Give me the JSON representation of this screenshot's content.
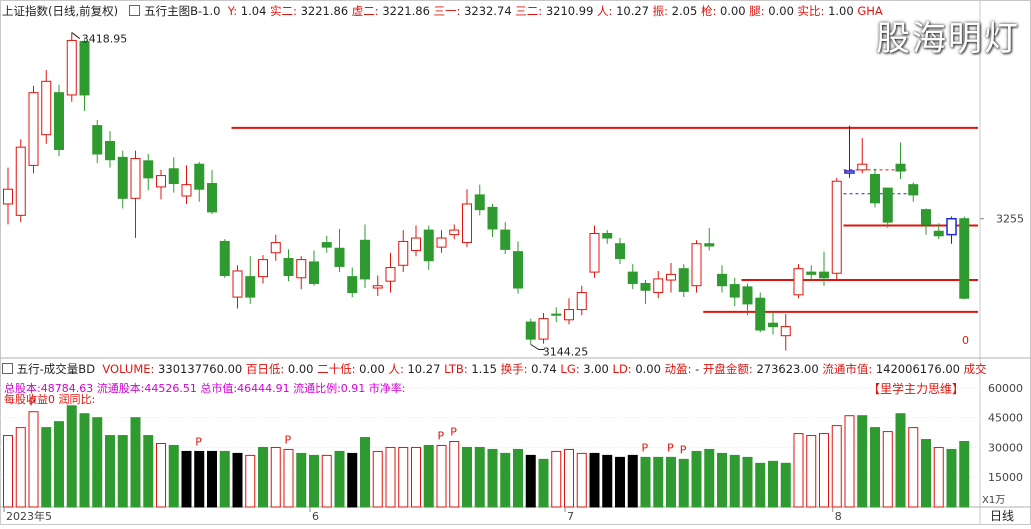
{
  "main_header": {
    "title": "上证指数(日线,前复权)",
    "indicator": "五行主图B-1.0",
    "items": [
      {
        "label": "Y:",
        "value": "1.04"
      },
      {
        "label": "实二:",
        "value": "3221.86"
      },
      {
        "label": "虚二:",
        "value": "3221.86"
      },
      {
        "label": "三一:",
        "value": "3232.74"
      },
      {
        "label": "三二:",
        "value": "3210.99"
      },
      {
        "label": "人:",
        "value": "10.27"
      },
      {
        "label": "振:",
        "value": "2.05"
      },
      {
        "label": "枪:",
        "value": "0.00"
      },
      {
        "label": "腿:",
        "value": "0.00"
      },
      {
        "label": "实比:",
        "value": "1.00"
      },
      {
        "label": "GHA",
        "value": ""
      }
    ]
  },
  "watermark": "股海明灯",
  "annotations": {
    "high": "3418.95",
    "low": "3144.25",
    "price_tick": "3255",
    "zero": "0"
  },
  "volume_header": {
    "indicator": "五行-成交量BD",
    "items": [
      {
        "label": "VOLUME:",
        "value": "330137760.00"
      },
      {
        "label": "百日低:",
        "value": "0.00"
      },
      {
        "label": "二十低:",
        "value": "0.00"
      },
      {
        "label": "人:",
        "value": "10.27"
      },
      {
        "label": "LTB:",
        "value": "1.15"
      },
      {
        "label": "换手:",
        "value": "0.74"
      },
      {
        "label": "LG:",
        "value": "3.00"
      },
      {
        "label": "LD:",
        "value": "0.00"
      },
      {
        "label": "动盈:",
        "value": "-"
      },
      {
        "label": "开盘金额:",
        "value": "273623.00"
      },
      {
        "label": "流通市值:",
        "value": "142006176.00"
      },
      {
        "label": "成交",
        "value": ""
      }
    ]
  },
  "volume_info": {
    "line1": "总股本:48784.63 流通股本:44526.51 总市值:46444.91 流通比例:0.91   市净率:",
    "line2": "每股收益0   润同比:",
    "brand": "【里学主力思维】"
  },
  "volume_axis": {
    "ticks": [
      "60000",
      "45000",
      "30000",
      "15000"
    ],
    "unit": "X1万"
  },
  "time_axis": {
    "labels": [
      "2023年5",
      "6",
      "7",
      "8"
    ],
    "period": "日线"
  },
  "colors": {
    "up": "#e0140e",
    "down": "#2f9a2f",
    "flat": "#1a2ad0",
    "low_vol": "#000000",
    "line": "#e0140e",
    "bg": "#ffffff"
  },
  "chart_data": [
    {
      "type": "candlestick",
      "title": "上证指数(日线,前复权)",
      "markers": {
        "high": 3418.95,
        "low": 3144.25
      },
      "y_tick": 3255,
      "candles": [
        {
          "o": 3268,
          "c": 3281,
          "h": 3300,
          "l": 3250,
          "d": "up"
        },
        {
          "o": 3258,
          "c": 3318,
          "h": 3325,
          "l": 3252,
          "d": "up"
        },
        {
          "o": 3302,
          "c": 3366,
          "h": 3372,
          "l": 3295,
          "d": "up"
        },
        {
          "o": 3329,
          "c": 3376,
          "h": 3386,
          "l": 3321,
          "d": "up"
        },
        {
          "o": 3366,
          "c": 3316,
          "h": 3373,
          "l": 3310,
          "d": "down"
        },
        {
          "o": 3364,
          "c": 3412,
          "h": 3418.95,
          "l": 3358,
          "d": "up"
        },
        {
          "o": 3411,
          "c": 3364,
          "h": 3413,
          "l": 3350,
          "d": "down"
        },
        {
          "o": 3337,
          "c": 3312,
          "h": 3342,
          "l": 3304,
          "d": "down"
        },
        {
          "o": 3323,
          "c": 3307,
          "h": 3332,
          "l": 3300,
          "d": "down"
        },
        {
          "o": 3309,
          "c": 3273,
          "h": 3315,
          "l": 3264,
          "d": "down"
        },
        {
          "o": 3273,
          "c": 3308,
          "h": 3315,
          "l": 3238,
          "d": "up"
        },
        {
          "o": 3306,
          "c": 3291,
          "h": 3312,
          "l": 3280,
          "d": "down"
        },
        {
          "o": 3283,
          "c": 3293,
          "h": 3298,
          "l": 3272,
          "d": "up"
        },
        {
          "o": 3299,
          "c": 3286,
          "h": 3309,
          "l": 3278,
          "d": "down"
        },
        {
          "o": 3275,
          "c": 3285,
          "h": 3302,
          "l": 3268,
          "d": "up"
        },
        {
          "o": 3303,
          "c": 3281,
          "h": 3305,
          "l": 3270,
          "d": "down"
        },
        {
          "o": 3286,
          "c": 3261,
          "h": 3298,
          "l": 3259,
          "d": "down"
        },
        {
          "o": 3235,
          "c": 3205,
          "h": 3237,
          "l": 3203,
          "d": "down"
        },
        {
          "o": 3186,
          "c": 3209,
          "h": 3214,
          "l": 3176,
          "d": "up"
        },
        {
          "o": 3204,
          "c": 3186,
          "h": 3222,
          "l": 3180,
          "d": "down"
        },
        {
          "o": 3204,
          "c": 3219,
          "h": 3223,
          "l": 3198,
          "d": "up"
        },
        {
          "o": 3225,
          "c": 3234,
          "h": 3241,
          "l": 3218,
          "d": "up"
        },
        {
          "o": 3220,
          "c": 3205,
          "h": 3228,
          "l": 3200,
          "d": "down"
        },
        {
          "o": 3203,
          "c": 3219,
          "h": 3222,
          "l": 3193,
          "d": "up"
        },
        {
          "o": 3217,
          "c": 3198,
          "h": 3227,
          "l": 3196,
          "d": "down"
        },
        {
          "o": 3234,
          "c": 3230,
          "h": 3240,
          "l": 3225,
          "d": "down"
        },
        {
          "o": 3229,
          "c": 3213,
          "h": 3246,
          "l": 3208,
          "d": "down"
        },
        {
          "o": 3204,
          "c": 3190,
          "h": 3212,
          "l": 3186,
          "d": "down"
        },
        {
          "o": 3236,
          "c": 3202,
          "h": 3250,
          "l": 3194,
          "d": "down"
        },
        {
          "o": 3194,
          "c": 3196,
          "h": 3205,
          "l": 3187,
          "d": "up"
        },
        {
          "o": 3200,
          "c": 3212,
          "h": 3225,
          "l": 3190,
          "d": "up"
        },
        {
          "o": 3214,
          "c": 3235,
          "h": 3245,
          "l": 3208,
          "d": "up"
        },
        {
          "o": 3227,
          "c": 3238,
          "h": 3249,
          "l": 3222,
          "d": "up"
        },
        {
          "o": 3245,
          "c": 3218,
          "h": 3249,
          "l": 3210,
          "d": "down"
        },
        {
          "o": 3230,
          "c": 3238,
          "h": 3245,
          "l": 3225,
          "d": "up"
        },
        {
          "o": 3241,
          "c": 3245,
          "h": 3250,
          "l": 3237,
          "d": "up"
        },
        {
          "o": 3234,
          "c": 3268,
          "h": 3281,
          "l": 3230,
          "d": "up"
        },
        {
          "o": 3276,
          "c": 3263,
          "h": 3285,
          "l": 3258,
          "d": "down"
        },
        {
          "o": 3265,
          "c": 3246,
          "h": 3268,
          "l": 3239,
          "d": "down"
        },
        {
          "o": 3245,
          "c": 3228,
          "h": 3252,
          "l": 3224,
          "d": "down"
        },
        {
          "o": 3226,
          "c": 3194,
          "h": 3235,
          "l": 3189,
          "d": "down"
        },
        {
          "o": 3164,
          "c": 3149,
          "h": 3167,
          "l": 3144.25,
          "d": "down"
        },
        {
          "o": 3149,
          "c": 3167,
          "h": 3172,
          "l": 3145,
          "d": "up"
        },
        {
          "o": 3171,
          "c": 3170,
          "h": 3177,
          "l": 3164,
          "d": "down"
        },
        {
          "o": 3166,
          "c": 3175,
          "h": 3185,
          "l": 3162,
          "d": "up"
        },
        {
          "o": 3175,
          "c": 3190,
          "h": 3196,
          "l": 3170,
          "d": "up"
        },
        {
          "o": 3208,
          "c": 3242,
          "h": 3249,
          "l": 3203,
          "d": "up"
        },
        {
          "o": 3242,
          "c": 3238,
          "h": 3245,
          "l": 3233,
          "d": "down"
        },
        {
          "o": 3233,
          "c": 3220,
          "h": 3238,
          "l": 3215,
          "d": "down"
        },
        {
          "o": 3208,
          "c": 3198,
          "h": 3215,
          "l": 3193,
          "d": "down"
        },
        {
          "o": 3198,
          "c": 3192,
          "h": 3201,
          "l": 3180,
          "d": "down"
        },
        {
          "o": 3190,
          "c": 3202,
          "h": 3209,
          "l": 3185,
          "d": "up"
        },
        {
          "o": 3201,
          "c": 3206,
          "h": 3216,
          "l": 3190,
          "d": "up"
        },
        {
          "o": 3211,
          "c": 3191,
          "h": 3215,
          "l": 3186,
          "d": "down"
        },
        {
          "o": 3196,
          "c": 3233,
          "h": 3236,
          "l": 3190,
          "d": "up"
        },
        {
          "o": 3233,
          "c": 3231,
          "h": 3247,
          "l": 3227,
          "d": "down"
        },
        {
          "o": 3206,
          "c": 3196,
          "h": 3214,
          "l": 3190,
          "d": "down"
        },
        {
          "o": 3197,
          "c": 3186,
          "h": 3203,
          "l": 3178,
          "d": "down"
        },
        {
          "o": 3195,
          "c": 3180,
          "h": 3198,
          "l": 3170,
          "d": "down"
        },
        {
          "o": 3185,
          "c": 3157,
          "h": 3190,
          "l": 3155,
          "d": "down"
        },
        {
          "o": 3163,
          "c": 3160,
          "h": 3173,
          "l": 3153,
          "d": "down"
        },
        {
          "o": 3152,
          "c": 3160,
          "h": 3171,
          "l": 3139,
          "d": "up"
        },
        {
          "o": 3188,
          "c": 3211,
          "h": 3215,
          "l": 3185,
          "d": "up"
        },
        {
          "o": 3208,
          "c": 3206,
          "h": 3214,
          "l": 3200,
          "d": "down"
        },
        {
          "o": 3208,
          "c": 3203,
          "h": 3226,
          "l": 3196,
          "d": "down"
        },
        {
          "o": 3207,
          "c": 3288,
          "h": 3291,
          "l": 3202,
          "d": "up"
        },
        {
          "o": 3296,
          "c": 3297,
          "h": 3337,
          "l": 3291,
          "d": "flat"
        },
        {
          "o": 3298,
          "c": 3303,
          "h": 3326,
          "l": 3295,
          "d": "up"
        },
        {
          "o": 3294,
          "c": 3269,
          "h": 3299,
          "l": 3265,
          "d": "down"
        },
        {
          "o": 3282,
          "c": 3252,
          "h": 3282,
          "l": 3247,
          "d": "down"
        },
        {
          "o": 3303,
          "c": 3297,
          "h": 3322,
          "l": 3290,
          "d": "down"
        },
        {
          "o": 3285,
          "c": 3276,
          "h": 3287,
          "l": 3270,
          "d": "down"
        },
        {
          "o": 3263,
          "c": 3250,
          "h": 3264,
          "l": 3241,
          "d": "down"
        },
        {
          "o": 3244,
          "c": 3240,
          "h": 3251,
          "l": 3237,
          "d": "down"
        },
        {
          "o": 3241,
          "c": 3255,
          "h": 3257,
          "l": 3233,
          "d": "flat"
        },
        {
          "o": 3255,
          "c": 3185,
          "h": 3257,
          "l": 3184,
          "d": "down"
        }
      ],
      "lines": [
        {
          "y": 3335,
          "from": 18,
          "to": 75,
          "style": "solid"
        },
        {
          "y": 3249,
          "from": 66,
          "to": 75,
          "style": "solid"
        },
        {
          "y": 3201,
          "from": 58,
          "to": 75,
          "style": "solid"
        },
        {
          "y": 3173,
          "from": 55,
          "to": 75,
          "style": "solid"
        },
        {
          "y": 3298,
          "from": 66,
          "to": 70,
          "style": "dashed-red"
        },
        {
          "y": 3277,
          "from": 66,
          "to": 70,
          "style": "dashed-blue"
        }
      ]
    },
    {
      "type": "bar",
      "title": "五行-成交量BD",
      "unit": "X1万",
      "ylim": [
        0,
        66000
      ],
      "values": [
        36000,
        40000,
        48000,
        40000,
        43000,
        51000,
        47000,
        45000,
        36000,
        36000,
        45000,
        36000,
        32000,
        31000,
        28000,
        28000,
        28000,
        28000,
        27000,
        26000,
        30000,
        30000,
        29000,
        27000,
        26000,
        26000,
        28000,
        27000,
        35000,
        28000,
        30000,
        30000,
        30000,
        31000,
        31000,
        33000,
        30000,
        30000,
        29000,
        27000,
        29000,
        26000,
        24000,
        28000,
        29000,
        27000,
        27000,
        26000,
        25000,
        26000,
        25000,
        25000,
        25000,
        24000,
        28000,
        29000,
        27000,
        26000,
        25000,
        22000,
        23000,
        22000,
        37000,
        36000,
        37000,
        41000,
        46000,
        46000,
        40000,
        38000,
        47000,
        40000,
        34000,
        30000,
        29000,
        33000
      ],
      "types": [
        "up",
        "up",
        "up",
        "down",
        "down",
        "down",
        "down",
        "down",
        "down",
        "down",
        "down",
        "down",
        "up",
        "down",
        "low",
        "low",
        "low",
        "down",
        "low",
        "up",
        "down",
        "up",
        "up",
        "down",
        "down",
        "up",
        "down",
        "low",
        "down",
        "up",
        "up",
        "up",
        "up",
        "down",
        "up",
        "up",
        "down",
        "down",
        "down",
        "down",
        "down",
        "low",
        "down",
        "up",
        "up",
        "up",
        "low",
        "low",
        "low",
        "low",
        "down",
        "down",
        "down",
        "down",
        "down",
        "down",
        "down",
        "down",
        "down",
        "down",
        "down",
        "down",
        "up",
        "up",
        "up",
        "up",
        "up",
        "down",
        "down",
        "up",
        "down",
        "up",
        "down",
        "up",
        "down",
        "down"
      ],
      "p_marks": [
        0,
        8,
        18,
        29,
        30,
        41,
        44,
        46
      ]
    }
  ]
}
